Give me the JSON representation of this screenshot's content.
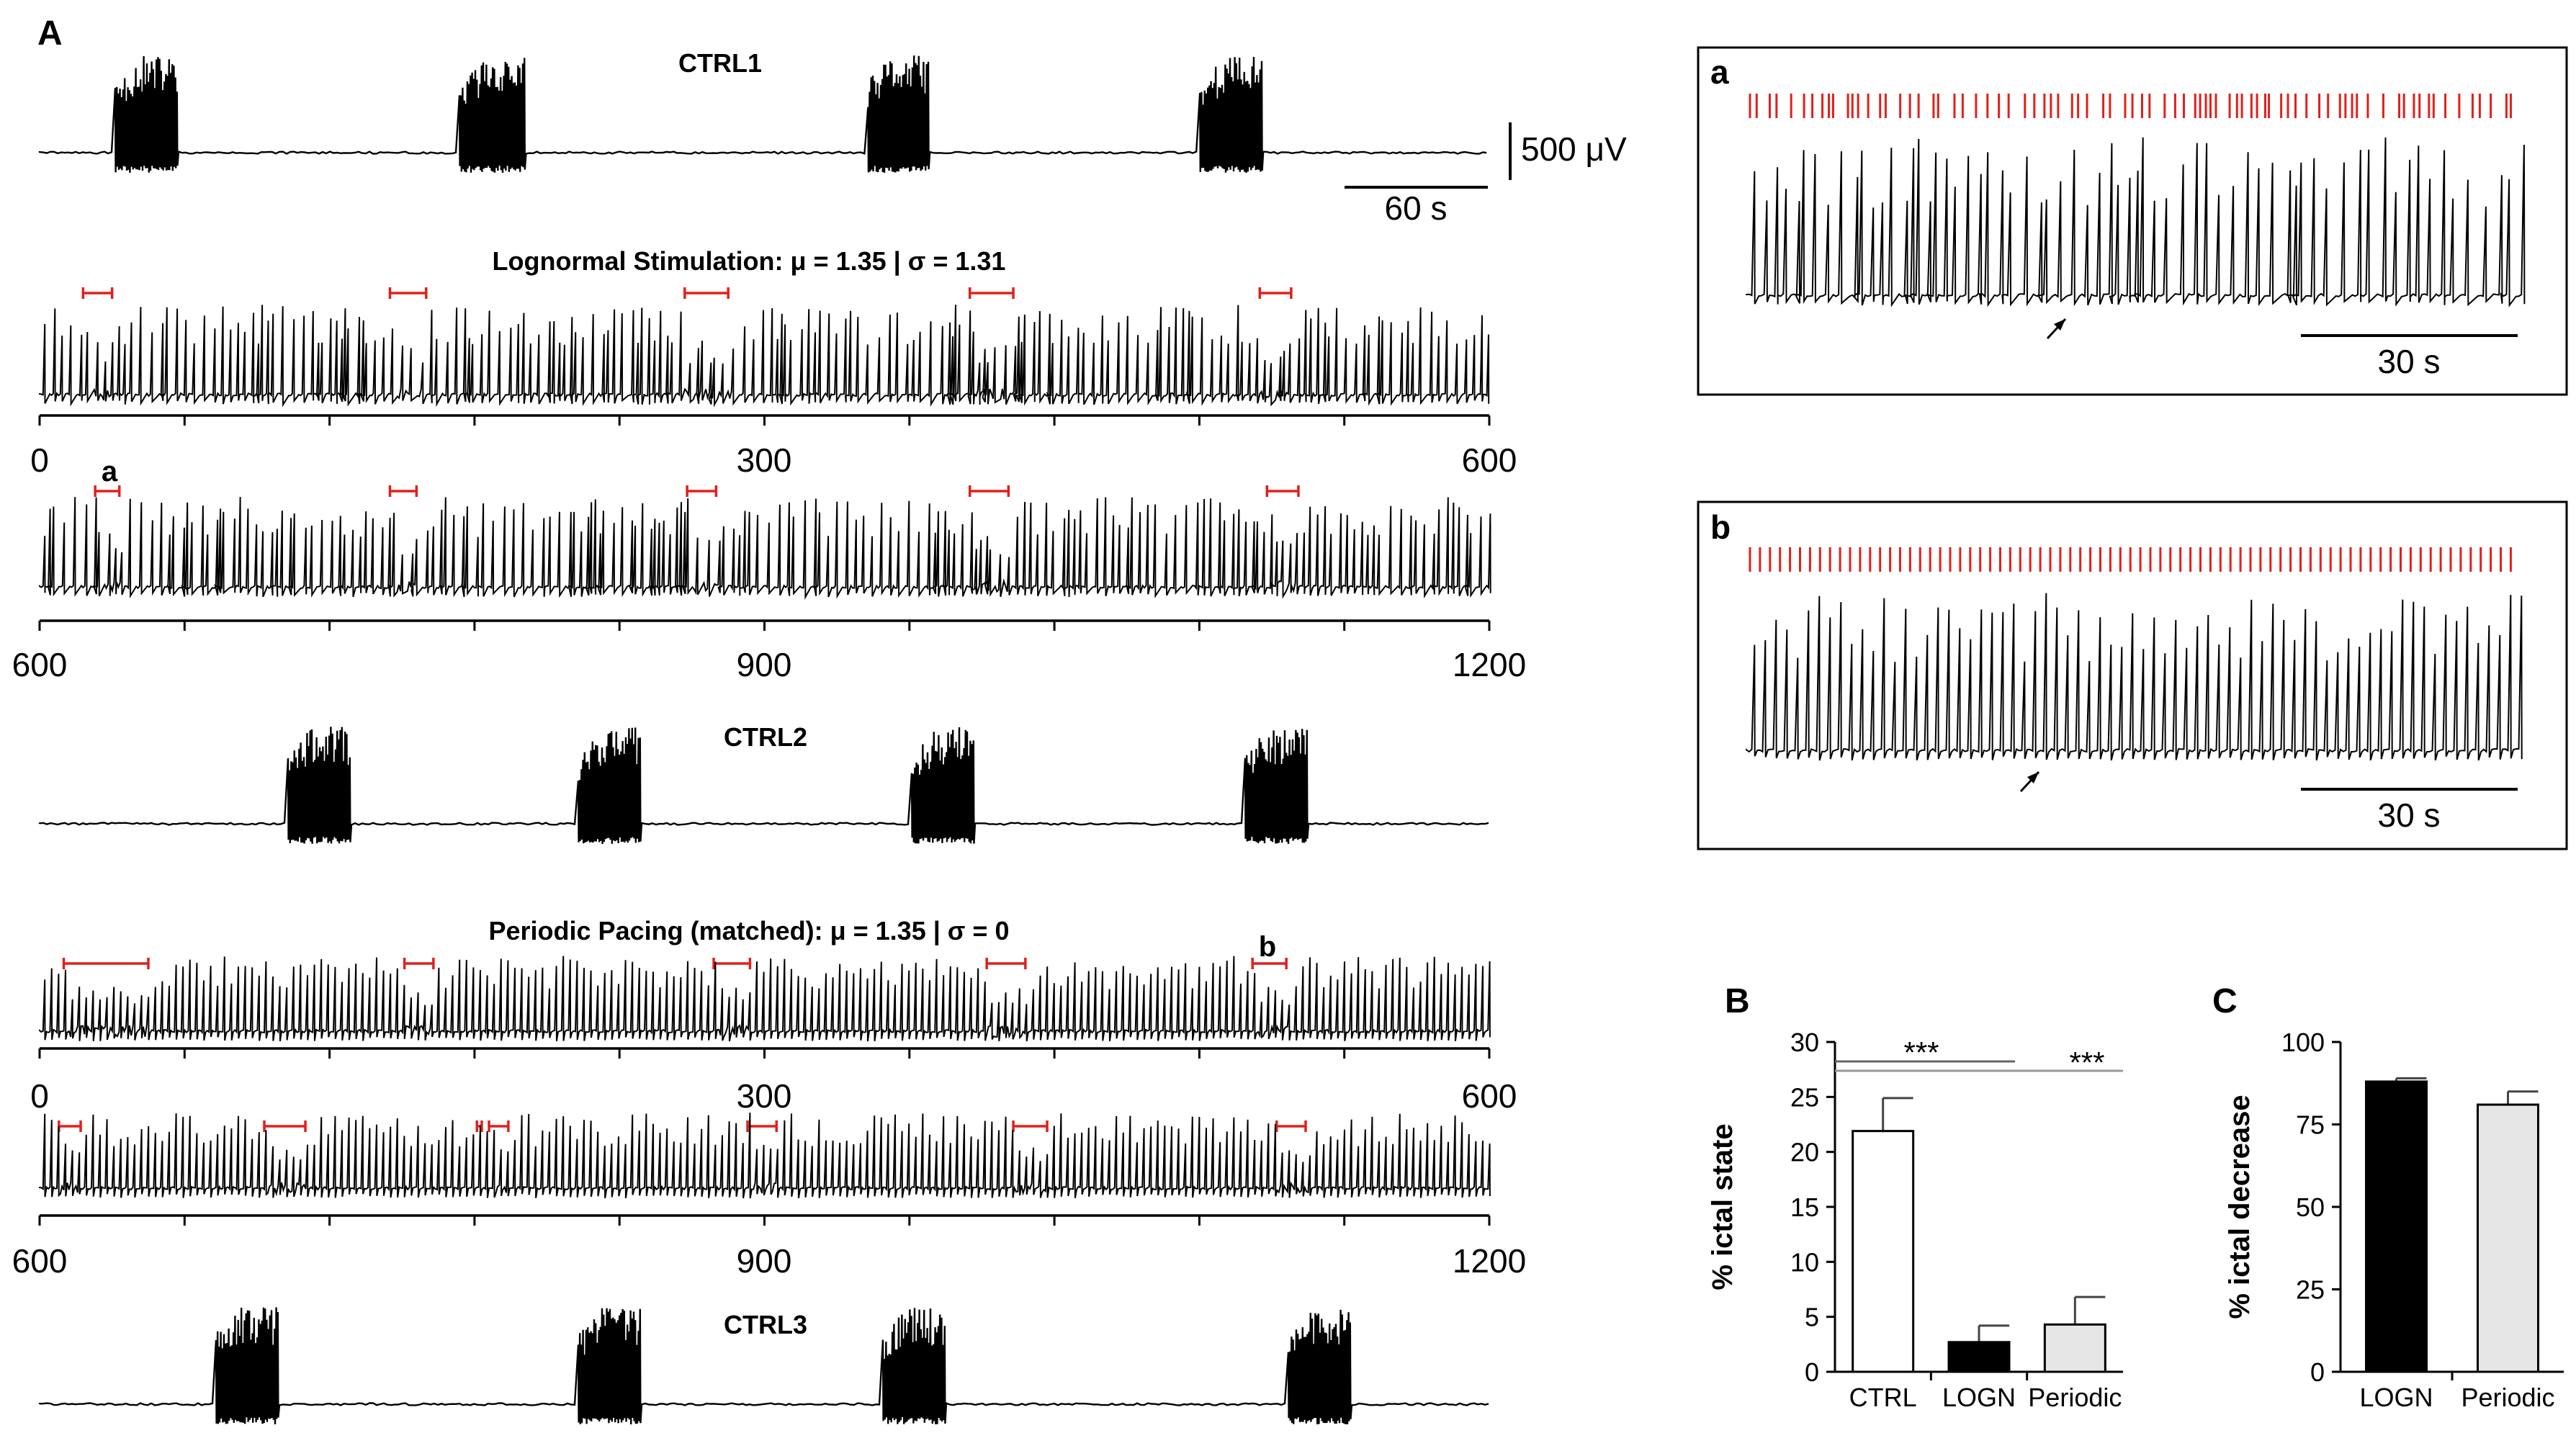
{
  "panel_A": {
    "label": "A",
    "traces": [
      {
        "id": "ctrl1",
        "title": "CTRL1",
        "kind": "ctrl",
        "bursts_s": [
          0.05,
          0.29,
          0.57,
          0.8
        ]
      },
      {
        "id": "logn1",
        "title": "Lognormal Stimulation: μ = 1.35 | σ = 1.31",
        "kind": "stim",
        "axis_start": 0,
        "axis_end": 600,
        "tick_labels": [
          "0",
          "300",
          "600"
        ],
        "ictal_markers_s": [
          [
            18,
            30
          ],
          [
            145,
            160
          ],
          [
            267,
            285
          ],
          [
            385,
            403
          ],
          [
            505,
            518
          ]
        ]
      },
      {
        "id": "logn2",
        "kind": "stim",
        "axis_start": 600,
        "axis_end": 1200,
        "tick_labels": [
          "600",
          "900",
          "1200"
        ],
        "inset_marker": "a",
        "ictal_markers_s": [
          [
            623,
            633
          ],
          [
            745,
            756
          ],
          [
            868,
            880
          ],
          [
            985,
            1001
          ],
          [
            1108,
            1121
          ]
        ]
      },
      {
        "id": "ctrl2",
        "title": "CTRL2",
        "kind": "ctrl",
        "bursts_s": [
          0.17,
          0.37,
          0.6,
          0.83
        ]
      },
      {
        "id": "per1",
        "title": "Periodic Pacing (matched): μ = 1.35 | σ = 0",
        "kind": "stim",
        "axis_start": 0,
        "axis_end": 600,
        "tick_labels": [
          "0",
          "300",
          "600"
        ],
        "inset_marker": "b",
        "ictal_markers_s": [
          [
            10,
            45
          ],
          [
            151,
            163
          ],
          [
            279,
            294
          ],
          [
            392,
            408
          ],
          [
            502,
            516
          ]
        ]
      },
      {
        "id": "per2",
        "kind": "stim",
        "axis_start": 600,
        "axis_end": 1200,
        "tick_labels": [
          "600",
          "900",
          "1200"
        ],
        "ictal_markers_s": [
          [
            608,
            617
          ],
          [
            693,
            710
          ],
          [
            781,
            783
          ],
          [
            786,
            794
          ],
          [
            893,
            905
          ],
          [
            1003,
            1017
          ],
          [
            1112,
            1124
          ]
        ]
      },
      {
        "id": "ctrl3",
        "title": "CTRL3",
        "kind": "ctrl",
        "bursts_s": [
          0.12,
          0.37,
          0.58,
          0.86
        ]
      }
    ],
    "scalebar_amplitude": "500 μV",
    "scalebar_time": "60 s"
  },
  "insets": [
    {
      "label": "a",
      "scalebar": "30 s"
    },
    {
      "label": "b",
      "scalebar": "30 s"
    }
  ],
  "chart_data": [
    {
      "panel": "B",
      "type": "bar",
      "title": "",
      "categories": [
        "CTRL",
        "LOGN",
        "Periodic"
      ],
      "values": [
        21.9,
        2.7,
        4.3
      ],
      "errors": [
        3.0,
        1.5,
        2.5
      ],
      "ylabel": "% ictal state",
      "ylim": [
        0,
        30
      ],
      "yticks": [
        "0",
        "5",
        "10",
        "15",
        "20",
        "25",
        "30"
      ],
      "significance": [
        "***",
        "***"
      ],
      "colors": [
        "#ffffff",
        "#000000",
        "#e6e6e6"
      ]
    },
    {
      "panel": "C",
      "type": "bar",
      "title": "",
      "categories": [
        "LOGN",
        "Periodic"
      ],
      "values": [
        88,
        81
      ],
      "errors": [
        1,
        4
      ],
      "ylabel": "% ictal decrease",
      "ylim": [
        0,
        100
      ],
      "yticks": [
        "0",
        "25",
        "50",
        "75",
        "100"
      ],
      "colors": [
        "#000000",
        "#e6e6e6"
      ]
    }
  ],
  "colors": {
    "trace": "#000000",
    "stim": "#e0201b",
    "ctrl_bar": "#ffffff",
    "logn_bar": "#000000",
    "periodic_bar": "#e6e6e6"
  }
}
